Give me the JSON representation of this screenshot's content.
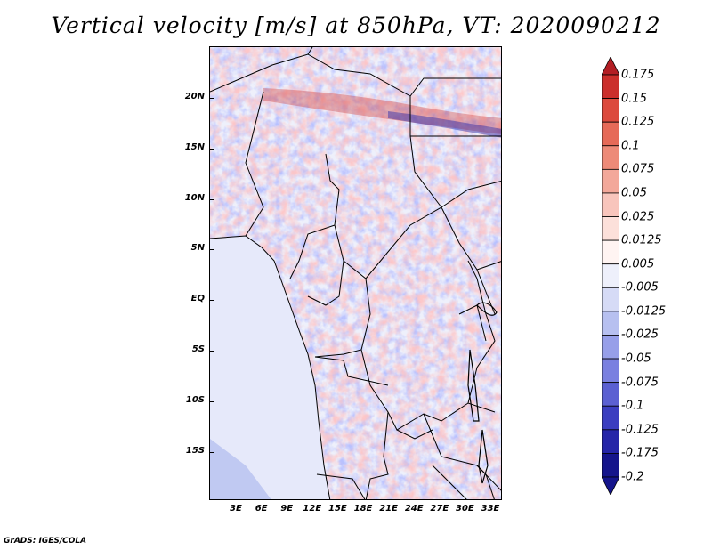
{
  "title": "Vertical velocity [m/s] at 850hPa, VT: 2020090212",
  "credit": "GrADS: IGES/COLA",
  "map": {
    "lat_labels": [
      "20N",
      "15N",
      "10N",
      "5N",
      "EQ",
      "5S",
      "10S",
      "15S"
    ],
    "lon_labels": [
      "3E",
      "6E",
      "9E",
      "12E",
      "15E",
      "18E",
      "21E",
      "24E",
      "27E",
      "30E",
      "33E"
    ]
  },
  "colorbar": {
    "labels": [
      "0.175",
      "0.15",
      "0.125",
      "0.1",
      "0.075",
      "0.05",
      "0.025",
      "0.0125",
      "0.005",
      "-0.005",
      "-0.0125",
      "-0.025",
      "-0.05",
      "-0.075",
      "-0.1",
      "-0.125",
      "-0.175",
      "-0.2"
    ],
    "colors": [
      "#b31e24",
      "#cb2f2c",
      "#dc4a3d",
      "#e66a58",
      "#ed8a78",
      "#f3a89a",
      "#f8c5bc",
      "#fce0da",
      "#fff4f2",
      "#eef0fb",
      "#d6dbf6",
      "#b7c0f0",
      "#979fe9",
      "#7a80e0",
      "#5b60d2",
      "#3b3ec0",
      "#2525a8",
      "#15158c"
    ]
  }
}
